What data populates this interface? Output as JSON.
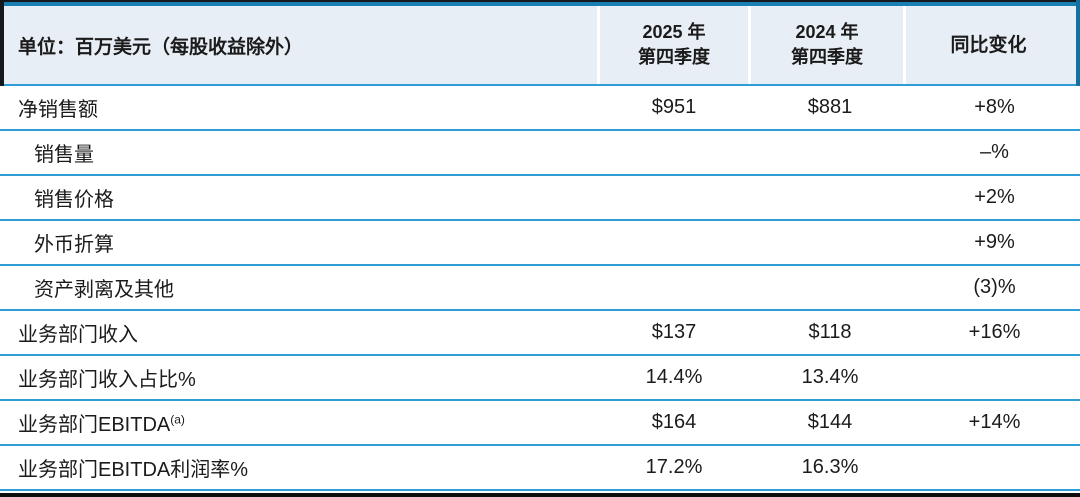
{
  "table": {
    "unit_label": "单位：百万美元（每股收益除外）",
    "columns": {
      "q4_2025": {
        "line1": "2025 年",
        "line2": "第四季度"
      },
      "q4_2024": {
        "line1": "2024 年",
        "line2": "第四季度"
      },
      "yoy": {
        "label": "同比变化"
      }
    },
    "rows": [
      {
        "label": "净销售额",
        "indent": false,
        "q4_2025": "$951",
        "q4_2024": "$881",
        "yoy": "+8%"
      },
      {
        "label": "销售量",
        "indent": true,
        "q4_2025": "",
        "q4_2024": "",
        "yoy": "–%"
      },
      {
        "label": "销售价格",
        "indent": true,
        "q4_2025": "",
        "q4_2024": "",
        "yoy": "+2%"
      },
      {
        "label": "外币折算",
        "indent": true,
        "q4_2025": "",
        "q4_2024": "",
        "yoy": "+9%"
      },
      {
        "label": "资产剥离及其他",
        "indent": true,
        "q4_2025": "",
        "q4_2024": "",
        "yoy": "(3)%"
      },
      {
        "label": "业务部门收入",
        "indent": false,
        "q4_2025": "$137",
        "q4_2024": "$118",
        "yoy": "+16%"
      },
      {
        "label": "业务部门收入占比%",
        "indent": false,
        "q4_2025": "14.4%",
        "q4_2024": "13.4%",
        "yoy": ""
      },
      {
        "label": "业务部门EBITDA",
        "sup": "(a)",
        "indent": false,
        "q4_2025": "$164",
        "q4_2024": "$144",
        "yoy": "+14%"
      },
      {
        "label": "业务部门EBITDA利润率%",
        "indent": false,
        "q4_2025": "17.2%",
        "q4_2024": "16.3%",
        "yoy": ""
      }
    ]
  },
  "colors": {
    "header_bg": "#e8eef5",
    "rule_blue": "#2f9ed6",
    "top_rule_blue": "#1a7fb2",
    "bottom_rule_black": "#0d0d0d",
    "text": "#1b1b1b"
  }
}
